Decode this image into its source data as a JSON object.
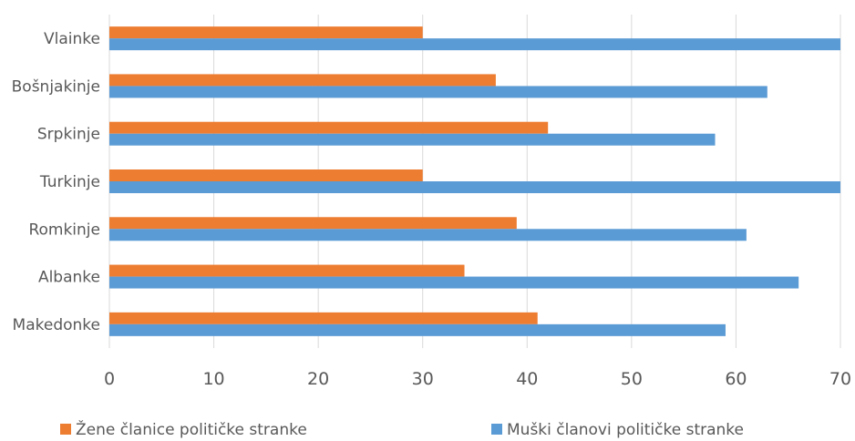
{
  "chart_data": {
    "type": "bar",
    "orientation": "horizontal",
    "categories": [
      "Vlainke",
      "Bošnjakinje",
      "Srpkinje",
      "Turkinje",
      "Romkinje",
      "Albanke",
      "Makedonke"
    ],
    "series": [
      {
        "name": "Žene članice političke stranke",
        "values": [
          30,
          37,
          42,
          30,
          39,
          34,
          41
        ],
        "color": "#ED7D31"
      },
      {
        "name": "Muški članovi političke stranke",
        "values": [
          70,
          63,
          58,
          70,
          61,
          66,
          59
        ],
        "color": "#5B9BD5"
      }
    ],
    "xlim": [
      0,
      70
    ],
    "xticks": [
      0,
      10,
      20,
      30,
      40,
      50,
      60,
      70
    ],
    "tick_labels": [
      "0",
      "10",
      "20",
      "30",
      "40",
      "50",
      "60",
      "70"
    ],
    "grid": true,
    "legend": "bottom"
  }
}
